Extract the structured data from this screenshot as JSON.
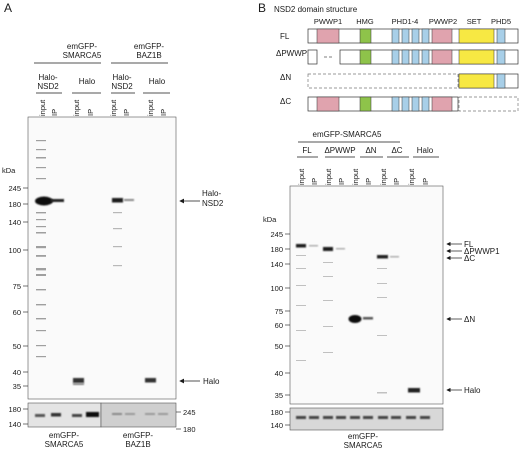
{
  "panel_a": {
    "letter": "A",
    "groups": [
      {
        "line1": "emGFP-",
        "line2": "SMARCA5"
      },
      {
        "line1": "emGFP-",
        "line2": "BAZ1B"
      }
    ],
    "baits": [
      {
        "line1": "Halo-",
        "line2": "NSD2"
      },
      {
        "line1": "Halo",
        "line2": ""
      },
      {
        "line1": "Halo-",
        "line2": "NSD2"
      },
      {
        "line1": "Halo",
        "line2": ""
      }
    ],
    "lanes": [
      "input",
      "IP",
      "input",
      "IP",
      "input",
      "IP",
      "input",
      "IP"
    ],
    "kda_label": "kDa",
    "markers": [
      "245",
      "180",
      "140",
      "100",
      "75",
      "60",
      "50",
      "40",
      "35"
    ],
    "annotations": [
      {
        "line1": "Halo-",
        "line2": "NSD2"
      },
      {
        "line1": "Halo",
        "line2": ""
      }
    ],
    "lower_left_markers": [
      "180",
      "140"
    ],
    "lower_right_markers": [
      "245",
      "180"
    ],
    "lower_labels": [
      {
        "line1": "emGFP-",
        "line2": "SMARCA5"
      },
      {
        "line1": "emGFP-",
        "line2": "BAZ1B"
      }
    ]
  },
  "panel_b": {
    "letter": "B",
    "structure_title": "NSD2 domain structure",
    "domains": [
      "PWWP1",
      "HMG",
      "PHD1-4",
      "PWWP2",
      "SET",
      "PHD5"
    ],
    "constructs": [
      "FL",
      "ΔPWWP1",
      "ΔN",
      "ΔC"
    ],
    "group": "emGFP-SMARCA5",
    "lane_groups": [
      "FL",
      "ΔPWWP",
      "ΔN",
      "ΔC",
      "Halo"
    ],
    "lanes": [
      "input",
      "IP",
      "input",
      "IP",
      "input",
      "IP",
      "input",
      "IP",
      "input",
      "IP"
    ],
    "kda_label": "kDa",
    "markers": [
      "245",
      "180",
      "140",
      "100",
      "75",
      "60",
      "50",
      "40",
      "35"
    ],
    "annotations": [
      "FL",
      "ΔPWWP1",
      "ΔC",
      "ΔN",
      "Halo"
    ],
    "lower_markers": [
      "180",
      "140"
    ],
    "lower_label": {
      "line1": "emGFP-",
      "line2": "SMARCA5"
    }
  },
  "colors": {
    "pwwp": "#e0a3ae",
    "hmg": "#8ec34a",
    "phd": "#a8cfe8",
    "set": "#f7e843"
  }
}
